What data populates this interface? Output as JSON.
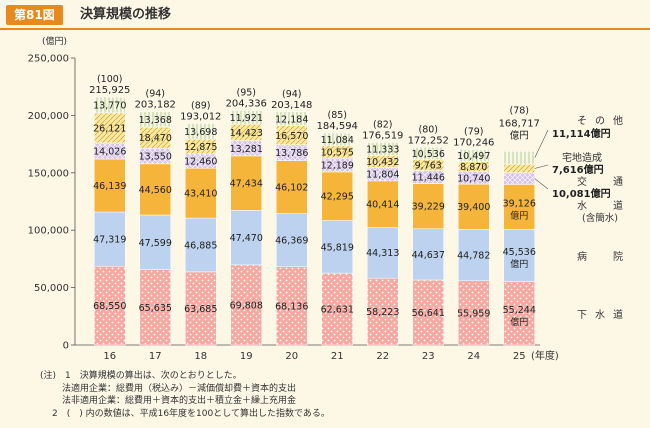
{
  "header": {
    "badge": "第81図",
    "title": "決算規模の推移"
  },
  "chart_data": {
    "type": "bar",
    "stacked": true,
    "title": "決算規模の推移",
    "ylabel": "(億円)",
    "xlabel": "(年度)",
    "ylim": [
      0,
      250000
    ],
    "yticks": [
      "0",
      "50,000",
      "100,000",
      "150,000",
      "200,000",
      "250,000"
    ],
    "categories": [
      "16",
      "17",
      "18",
      "19",
      "20",
      "21",
      "22",
      "23",
      "24",
      "25"
    ],
    "series": [
      {
        "name": "下水道",
        "labels": [
          "下",
          "水",
          "道"
        ],
        "color": "#f6a8a0",
        "values": [
          68550,
          65635,
          63685,
          69808,
          68136,
          62631,
          58223,
          56641,
          55959,
          55244
        ],
        "value_labels": [
          "68,550",
          "65,635",
          "63,685",
          "69,808",
          "68,136",
          "62,631",
          "58,223",
          "56,641",
          "55,959",
          "55,244"
        ]
      },
      {
        "name": "病院",
        "labels": [
          "病",
          "院"
        ],
        "color": "#bcd2ef",
        "values": [
          47319,
          47599,
          46885,
          47470,
          46369,
          45819,
          44313,
          44637,
          44782,
          45536
        ],
        "value_labels": [
          "47,319",
          "47,599",
          "46,885",
          "47,470",
          "46,369",
          "45,819",
          "44,313",
          "44,637",
          "44,782",
          "45,536"
        ]
      },
      {
        "name": "水道(含簡水)",
        "labels": [
          "水",
          "道",
          "(含簡水)"
        ],
        "color": "#f5b53a",
        "values": [
          46139,
          44560,
          43410,
          47434,
          46102,
          42295,
          40414,
          39229,
          39400,
          39126
        ],
        "value_labels": [
          "46,139",
          "44,560",
          "43,410",
          "47,434",
          "46,102",
          "42,295",
          "40,414",
          "39,229",
          "39,400",
          "39,126"
        ]
      },
      {
        "name": "交通",
        "labels": [
          "交",
          "通"
        ],
        "color": "#d7c4ea",
        "values": [
          14026,
          13550,
          12460,
          13281,
          13786,
          12189,
          11804,
          11446,
          10740,
          10081
        ],
        "value_labels": [
          "14,026",
          "13,550",
          "12,460",
          "13,281",
          "13,786",
          "12,189",
          "11,804",
          "11,446",
          "10,740",
          "10,081"
        ]
      },
      {
        "name": "宅地造成",
        "labels": [
          "宅地造成"
        ],
        "color": "#fbe9a0",
        "values": [
          26121,
          18470,
          12875,
          14423,
          16570,
          10575,
          10432,
          9763,
          8870,
          7616
        ],
        "value_labels": [
          "26,121",
          "18,470",
          "12,875",
          "14,423",
          "16,570",
          "10,575",
          "10,432",
          "9,763",
          "8,870",
          "7,616"
        ]
      },
      {
        "name": "その他",
        "labels": [
          "そ",
          "の",
          "他"
        ],
        "color": "#f7f3df",
        "values": [
          13770,
          13368,
          13698,
          11921,
          12184,
          11084,
          11333,
          10536,
          10497,
          11114
        ],
        "value_labels": [
          "13,770",
          "13,368",
          "13,698",
          "11,921",
          "12,184",
          "11,084",
          "11,333",
          "10,536",
          "10,497",
          "11,114"
        ]
      }
    ],
    "totals": [
      215925,
      203182,
      193012,
      204336,
      203148,
      184594,
      176519,
      172252,
      170246,
      168717
    ],
    "total_labels": [
      "215,925",
      "203,182",
      "193,012",
      "204,336",
      "203,148",
      "184,594",
      "176,519",
      "172,252",
      "170,246",
      "168,717"
    ],
    "index_labels": [
      "(100)",
      "(94)",
      "(89)",
      "(95)",
      "(94)",
      "(85)",
      "(82)",
      "(80)",
      "(79)",
      "(78)"
    ],
    "unit": "億円",
    "last_bar_labels": {
      "total": "168,717",
      "total_unit": "億円",
      "sonota": "11,114億円",
      "takuchi": "7,616億円",
      "kotsu": "10,081億円",
      "suido": "39,126",
      "suido_unit": "億円",
      "byoin": "45,536",
      "byoin_unit": "億円",
      "gesuido": "55,244",
      "gesuido_unit": "億円"
    }
  },
  "notes": [
    "(注)　1　決算規模の算出は、次のとおりとした。",
    "法適用企業：総費用（税込み）－減価償却費＋資本的支出",
    "法非適用企業：総費用＋資本的支出＋積立金＋繰上充用金",
    "2　(　) 内の数値は、平成16年度を100として算出した指数である。"
  ]
}
